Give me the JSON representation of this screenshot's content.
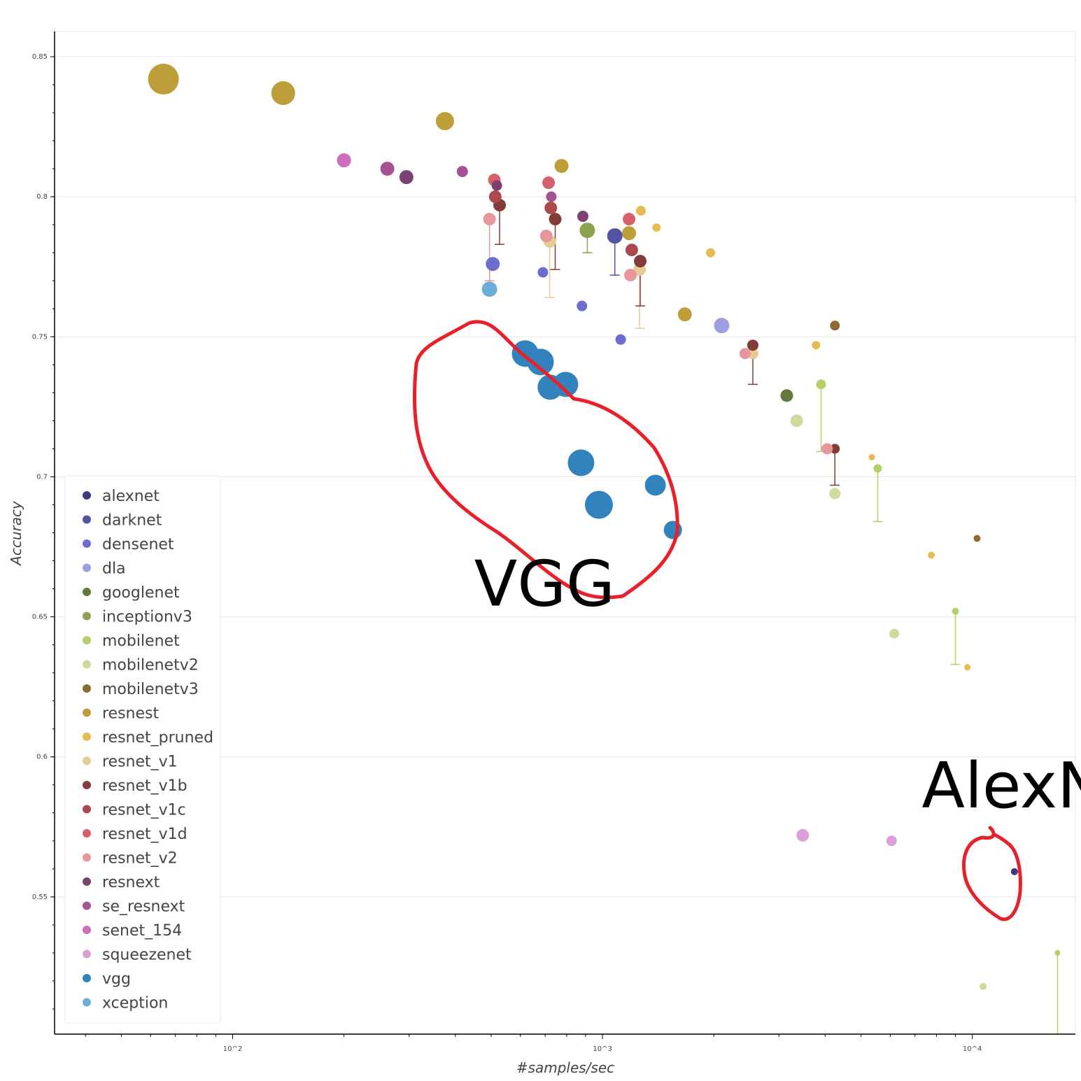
{
  "chart_data": {
    "type": "scatter",
    "title": "",
    "xlabel": "#samples/sec",
    "ylabel": "Accuracy",
    "x_scale": "log",
    "xlim": [
      33,
      19000
    ],
    "ylim": [
      0.501,
      0.859
    ],
    "x_ticks": [
      {
        "value": 100,
        "label": "10^2"
      },
      {
        "value": 1000,
        "label": "10^3"
      },
      {
        "value": 10000,
        "label": "10^4"
      }
    ],
    "y_ticks": [
      {
        "value": 0.55,
        "label": "0.55"
      },
      {
        "value": 0.6,
        "label": "0.6"
      },
      {
        "value": 0.65,
        "label": "0.65"
      },
      {
        "value": 0.7,
        "label": "0.7"
      },
      {
        "value": 0.75,
        "label": "0.75"
      },
      {
        "value": 0.8,
        "label": "0.8"
      },
      {
        "value": 0.85,
        "label": "0.85"
      }
    ],
    "grid": "horizontal",
    "legend_position": "bottom-left",
    "series": [
      {
        "name": "alexnet",
        "color": "#3b3b7c",
        "points": [
          {
            "x": 13000,
            "y": 0.559,
            "size": 10
          }
        ]
      },
      {
        "name": "darknet",
        "color": "#5254a3",
        "points": [
          {
            "x": 1080,
            "y": 0.786,
            "size": 22,
            "err_low": 0.772
          }
        ]
      },
      {
        "name": "densenet",
        "color": "#6b6ecf",
        "points": [
          {
            "x": 505,
            "y": 0.776,
            "size": 20
          },
          {
            "x": 690,
            "y": 0.773,
            "size": 15
          },
          {
            "x": 880,
            "y": 0.761,
            "size": 15
          },
          {
            "x": 1120,
            "y": 0.749,
            "size": 15
          }
        ]
      },
      {
        "name": "dla",
        "color": "#9c9ede",
        "points": [
          {
            "x": 2100,
            "y": 0.754,
            "size": 22
          }
        ]
      },
      {
        "name": "googlenet",
        "color": "#637939",
        "points": [
          {
            "x": 3150,
            "y": 0.729,
            "size": 18
          }
        ]
      },
      {
        "name": "inceptionv3",
        "color": "#8ca252",
        "points": [
          {
            "x": 910,
            "y": 0.788,
            "size": 22,
            "err_low": 0.78
          }
        ]
      },
      {
        "name": "mobilenet",
        "color": "#b5cf6b",
        "points": [
          {
            "x": 3900,
            "y": 0.733,
            "size": 14,
            "err_low": 0.709
          },
          {
            "x": 5550,
            "y": 0.703,
            "size": 12,
            "err_low": 0.684
          },
          {
            "x": 9000,
            "y": 0.652,
            "size": 10,
            "err_low": 0.633
          },
          {
            "x": 17000,
            "y": 0.53,
            "size": 8,
            "err_low": 0.501
          }
        ]
      },
      {
        "name": "mobilenetv2",
        "color": "#cedb9c",
        "points": [
          {
            "x": 3350,
            "y": 0.72,
            "size": 18
          },
          {
            "x": 4250,
            "y": 0.694,
            "size": 16
          },
          {
            "x": 6150,
            "y": 0.644,
            "size": 14
          },
          {
            "x": 10700,
            "y": 0.518,
            "size": 10
          }
        ]
      },
      {
        "name": "mobilenetv3",
        "color": "#8c6d31",
        "points": [
          {
            "x": 4250,
            "y": 0.754,
            "size": 14
          },
          {
            "x": 10300,
            "y": 0.678,
            "size": 10
          }
        ]
      },
      {
        "name": "resnest",
        "color": "#bd9e39",
        "points": [
          {
            "x": 65,
            "y": 0.842,
            "size": 44
          },
          {
            "x": 137,
            "y": 0.837,
            "size": 34
          },
          {
            "x": 375,
            "y": 0.827,
            "size": 26
          },
          {
            "x": 775,
            "y": 0.811,
            "size": 20
          },
          {
            "x": 1180,
            "y": 0.787,
            "size": 20
          },
          {
            "x": 1670,
            "y": 0.758,
            "size": 20
          }
        ]
      },
      {
        "name": "resnet_pruned",
        "color": "#e7ba52",
        "points": [
          {
            "x": 1270,
            "y": 0.795,
            "size": 14
          },
          {
            "x": 1400,
            "y": 0.789,
            "size": 12
          },
          {
            "x": 1960,
            "y": 0.78,
            "size": 13
          },
          {
            "x": 3780,
            "y": 0.747,
            "size": 12
          },
          {
            "x": 5350,
            "y": 0.707,
            "size": 9
          },
          {
            "x": 7750,
            "y": 0.672,
            "size": 10
          },
          {
            "x": 9700,
            "y": 0.632,
            "size": 9
          }
        ]
      },
      {
        "name": "resnet_v1",
        "color": "#e7cb94",
        "points": [
          {
            "x": 720,
            "y": 0.784,
            "size": 18,
            "err_low": 0.764
          },
          {
            "x": 1260,
            "y": 0.774,
            "size": 18,
            "err_low": 0.753
          },
          {
            "x": 2550,
            "y": 0.744,
            "size": 16
          }
        ]
      },
      {
        "name": "resnet_v1b",
        "color": "#843c39",
        "points": [
          {
            "x": 527,
            "y": 0.797,
            "size": 18,
            "err_low": 0.783
          },
          {
            "x": 745,
            "y": 0.792,
            "size": 18,
            "err_low": 0.774
          },
          {
            "x": 1265,
            "y": 0.777,
            "size": 18,
            "err_low": 0.761
          },
          {
            "x": 2550,
            "y": 0.747,
            "size": 16,
            "err_low": 0.733
          },
          {
            "x": 4250,
            "y": 0.71,
            "size": 14,
            "err_low": 0.697
          }
        ]
      },
      {
        "name": "resnet_v1c",
        "color": "#ad494a",
        "points": [
          {
            "x": 513,
            "y": 0.8,
            "size": 18
          },
          {
            "x": 725,
            "y": 0.796,
            "size": 18
          },
          {
            "x": 1200,
            "y": 0.781,
            "size": 18
          }
        ]
      },
      {
        "name": "resnet_v1d",
        "color": "#d6616b",
        "points": [
          {
            "x": 510,
            "y": 0.806,
            "size": 18
          },
          {
            "x": 715,
            "y": 0.805,
            "size": 18
          },
          {
            "x": 1180,
            "y": 0.792,
            "size": 18
          }
        ]
      },
      {
        "name": "resnet_v2",
        "color": "#e7969c",
        "points": [
          {
            "x": 495,
            "y": 0.792,
            "size": 18,
            "err_low": 0.77
          },
          {
            "x": 705,
            "y": 0.786,
            "size": 18
          },
          {
            "x": 1190,
            "y": 0.772,
            "size": 18
          },
          {
            "x": 2430,
            "y": 0.744,
            "size": 16
          },
          {
            "x": 4050,
            "y": 0.71,
            "size": 16
          }
        ]
      },
      {
        "name": "resnext",
        "color": "#7b4173",
        "points": [
          {
            "x": 295,
            "y": 0.807,
            "size": 20
          },
          {
            "x": 518,
            "y": 0.804,
            "size": 15
          },
          {
            "x": 885,
            "y": 0.793,
            "size": 16
          }
        ]
      },
      {
        "name": "se_resnext",
        "color": "#a55194",
        "points": [
          {
            "x": 262,
            "y": 0.81,
            "size": 20
          },
          {
            "x": 418,
            "y": 0.809,
            "size": 16
          },
          {
            "x": 727,
            "y": 0.8,
            "size": 15
          }
        ]
      },
      {
        "name": "senet_154",
        "color": "#ce6dbd",
        "points": [
          {
            "x": 200,
            "y": 0.813,
            "size": 20
          }
        ]
      },
      {
        "name": "squeezenet",
        "color": "#de9ed6",
        "points": [
          {
            "x": 3480,
            "y": 0.572,
            "size": 18
          },
          {
            "x": 6050,
            "y": 0.57,
            "size": 15
          }
        ]
      },
      {
        "name": "vgg",
        "color": "#3182bd",
        "points": [
          {
            "x": 618,
            "y": 0.744,
            "size": 38
          },
          {
            "x": 680,
            "y": 0.741,
            "size": 38
          },
          {
            "x": 722,
            "y": 0.732,
            "size": 36
          },
          {
            "x": 795,
            "y": 0.733,
            "size": 36
          },
          {
            "x": 875,
            "y": 0.705,
            "size": 38
          },
          {
            "x": 978,
            "y": 0.69,
            "size": 40
          },
          {
            "x": 1390,
            "y": 0.697,
            "size": 30
          },
          {
            "x": 1550,
            "y": 0.681,
            "size": 26
          }
        ]
      },
      {
        "name": "xception",
        "color": "#6baed6",
        "points": [
          {
            "x": 495,
            "y": 0.767,
            "size": 22
          }
        ]
      }
    ],
    "annotations": [
      {
        "text": "VGG",
        "data_x": 450,
        "data_y": 0.654
      },
      {
        "text": "AlexNet",
        "data_x": 7300,
        "data_y": 0.582
      }
    ]
  }
}
